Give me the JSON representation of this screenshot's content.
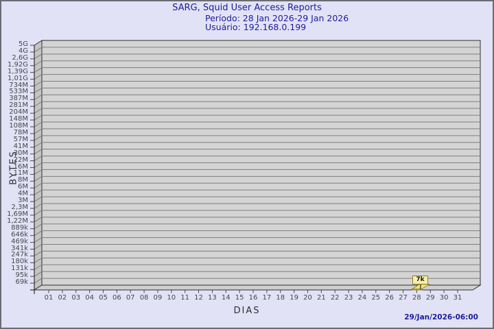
{
  "header": {
    "title": "SARG, Squid User Access Reports",
    "period": "Período: 28 Jan 2026-29 Jan 2026",
    "user": "Usuário: 192.168.0.199"
  },
  "footer": {
    "timestamp": "29/Jan/2026-06:00"
  },
  "colors": {
    "background": "#e2e2f6",
    "frame_border": "#6b6b75",
    "heading_text": "#1b1b9e",
    "plot_background": "#d4d4d4",
    "side_wall": "#c4c4c4",
    "floor": "#cfcfcf",
    "gridline": "#7e7e7e",
    "box_edge": "#2e2e2e",
    "tick_text": "#46464a",
    "bar_fill": "#efe28c",
    "bar_edge": "#8f8224",
    "flag_fill": "#f7efae",
    "flag_border": "#8f8224"
  },
  "chart_data": {
    "type": "bar",
    "style": "3d-bar-chart",
    "title": "SARG, Squid User Access Reports",
    "subtitle": [
      "Período: 28 Jan 2026-29 Jan 2026",
      "Usuário: 192.168.0.199"
    ],
    "xlabel": "DIAS",
    "ylabel": "BYTES",
    "x_tick_labels": [
      "01",
      "02",
      "03",
      "04",
      "05",
      "06",
      "07",
      "08",
      "09",
      "10",
      "11",
      "12",
      "13",
      "14",
      "15",
      "16",
      "17",
      "18",
      "19",
      "20",
      "21",
      "22",
      "23",
      "24",
      "25",
      "26",
      "27",
      "28",
      "29",
      "30",
      "31"
    ],
    "y_tick_labels": [
      "5G",
      "4G",
      "2,6G",
      "1,92G",
      "1,39G",
      "1,01G",
      "734M",
      "533M",
      "387M",
      "281M",
      "204M",
      "148M",
      "108M",
      "78M",
      "57M",
      "41M",
      "30M",
      "22M",
      "16M",
      "11M",
      "8M",
      "6M",
      "4M",
      "3M",
      "2,3M",
      "1,69M",
      "1,22M",
      "889k",
      "646k",
      "469k",
      "341k",
      "247k",
      "180k",
      "131k",
      "95k",
      "69k"
    ],
    "y_scale": "logarithmic-like, top 5G down to 69k",
    "grid": "horizontal gridlines on, vertical off",
    "legend": "none",
    "points": [
      {
        "x": "28",
        "label": "7k",
        "value_bytes": 7000
      }
    ]
  }
}
